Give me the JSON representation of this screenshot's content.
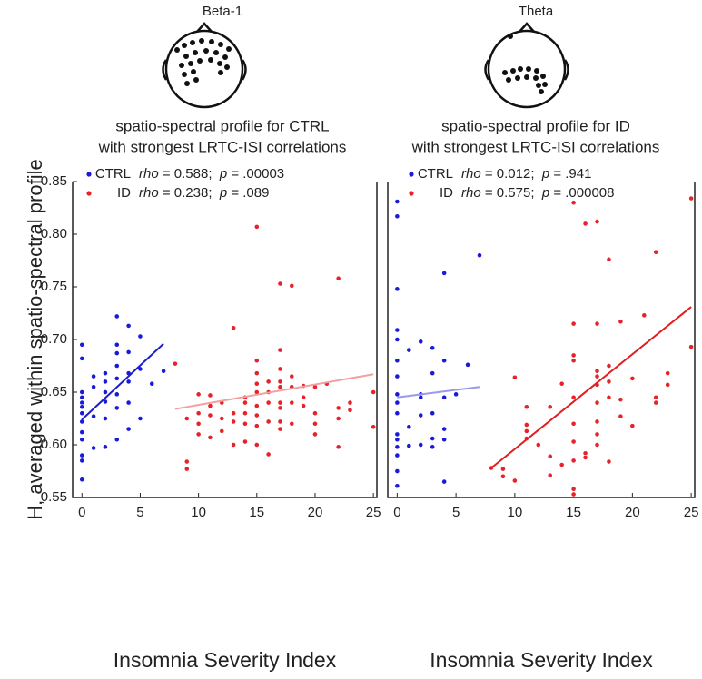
{
  "chart_data": [
    {
      "type": "scatter",
      "title": "Beta-1",
      "subtitle": [
        "spatio-spectral profile for CTRL",
        "with strongest LRTC-ISI correlations"
      ],
      "xlabel": "Insomnia Severity Index",
      "ylabel": "H, averaged within spatio-spectral profile",
      "xlim": [
        -0.8,
        25.3
      ],
      "ylim": [
        0.55,
        0.85
      ],
      "xticks": [
        0,
        5,
        10,
        15,
        20,
        25
      ],
      "yticks": [
        0.55,
        {
          "value": 0.6,
          "label": "0.60"
        },
        0.65,
        {
          "value": 0.7,
          "label": "0.70"
        },
        0.75,
        {
          "value": 0.8,
          "label": "0.80"
        },
        0.85
      ],
      "series": [
        {
          "name": "CTRL",
          "color": "#1a1adb",
          "legend_stats": [
            "rho",
            " = 0.588;  ",
            "p",
            " = .00003"
          ],
          "x": [
            0,
            0,
            0,
            0,
            0,
            0,
            0,
            0,
            0,
            0,
            0,
            0,
            0,
            1,
            1,
            1,
            1,
            2,
            2,
            2,
            2,
            2,
            2,
            3,
            3,
            3,
            3,
            3,
            3,
            3,
            3,
            4,
            4,
            4,
            4,
            4,
            4,
            5,
            5,
            5,
            6,
            7
          ],
          "values": [
            0.695,
            0.682,
            0.65,
            0.645,
            0.64,
            0.636,
            0.63,
            0.622,
            0.612,
            0.605,
            0.59,
            0.585,
            0.567,
            0.665,
            0.655,
            0.627,
            0.597,
            0.668,
            0.66,
            0.65,
            0.641,
            0.625,
            0.598,
            0.722,
            0.695,
            0.687,
            0.675,
            0.663,
            0.648,
            0.635,
            0.605,
            0.713,
            0.688,
            0.668,
            0.66,
            0.64,
            0.615,
            0.703,
            0.672,
            0.625,
            0.658,
            0.67
          ],
          "fit": {
            "color": "#1c1ccc",
            "x": [
              0,
              7
            ],
            "values": [
              0.624,
              0.696
            ]
          }
        },
        {
          "name": "ID",
          "color": "#e8222a",
          "legend_stats": [
            "rho",
            " = 0.238;  ",
            "p",
            " = .089"
          ],
          "x": [
            8,
            9,
            9,
            9,
            10,
            10,
            10,
            10,
            11,
            11,
            11,
            11,
            12,
            12,
            12,
            13,
            13,
            13,
            13,
            14,
            14,
            14,
            14,
            14,
            15,
            15,
            15,
            15,
            15,
            15,
            15,
            15,
            15,
            16,
            16,
            16,
            16,
            16,
            17,
            17,
            17,
            17,
            17,
            17,
            17,
            17,
            17,
            18,
            18,
            18,
            18,
            18,
            19,
            19,
            19,
            20,
            20,
            20,
            20,
            21,
            22,
            22,
            22,
            22,
            23,
            23,
            25,
            25
          ],
          "values": [
            0.677,
            0.625,
            0.584,
            0.577,
            0.648,
            0.63,
            0.62,
            0.61,
            0.647,
            0.628,
            0.607,
            0.637,
            0.64,
            0.625,
            0.613,
            0.711,
            0.63,
            0.622,
            0.6,
            0.645,
            0.64,
            0.63,
            0.62,
            0.603,
            0.807,
            0.68,
            0.668,
            0.658,
            0.65,
            0.637,
            0.628,
            0.618,
            0.6,
            0.66,
            0.65,
            0.64,
            0.622,
            0.591,
            0.753,
            0.69,
            0.672,
            0.66,
            0.655,
            0.64,
            0.635,
            0.622,
            0.615,
            0.751,
            0.665,
            0.655,
            0.64,
            0.62,
            0.656,
            0.645,
            0.637,
            0.655,
            0.63,
            0.62,
            0.61,
            0.658,
            0.758,
            0.635,
            0.625,
            0.598,
            0.64,
            0.633,
            0.65,
            0.617
          ],
          "fit": {
            "color": "#f4a0a0",
            "x": [
              8,
              25
            ],
            "values": [
              0.634,
              0.667
            ]
          }
        }
      ]
    },
    {
      "type": "scatter",
      "title": "Theta",
      "subtitle": [
        "spatio-spectral profile for ID",
        "with strongest LRTC-ISI correlations"
      ],
      "xlabel": "Insomnia Severity Index",
      "xlim": [
        -0.8,
        25.3
      ],
      "ylim": [
        0.55,
        0.85
      ],
      "xticks": [
        0,
        5,
        10,
        15,
        20,
        25
      ],
      "series": [
        {
          "name": "CTRL",
          "color": "#1a1adb",
          "legend_stats": [
            "rho",
            " = 0.012;  ",
            "p",
            " = .941"
          ],
          "x": [
            0,
            0,
            0,
            0,
            0,
            0,
            0,
            0,
            0,
            0,
            0,
            0,
            0,
            0,
            0,
            0,
            1,
            1,
            1,
            2,
            2,
            2,
            2,
            2,
            3,
            3,
            3,
            3,
            3,
            4,
            4,
            4,
            4,
            4,
            4,
            5,
            6,
            7
          ],
          "values": [
            0.831,
            0.817,
            0.748,
            0.709,
            0.7,
            0.68,
            0.665,
            0.648,
            0.64,
            0.63,
            0.61,
            0.605,
            0.598,
            0.59,
            0.575,
            0.561,
            0.69,
            0.617,
            0.599,
            0.698,
            0.648,
            0.645,
            0.628,
            0.6,
            0.692,
            0.668,
            0.63,
            0.606,
            0.598,
            0.763,
            0.68,
            0.645,
            0.615,
            0.605,
            0.565,
            0.648,
            0.676,
            0.78
          ],
          "fit": {
            "color": "#9999ee",
            "x": [
              0,
              7
            ],
            "values": [
              0.645,
              0.655
            ]
          }
        },
        {
          "name": "ID",
          "color": "#e8222a",
          "legend_stats": [
            "rho",
            " = 0.575;  ",
            "p",
            " = .000008"
          ],
          "x": [
            8,
            9,
            9,
            10,
            10,
            11,
            11,
            11,
            11,
            12,
            13,
            13,
            13,
            14,
            14,
            15,
            15,
            15,
            15,
            15,
            15,
            15,
            15,
            15,
            15,
            16,
            16,
            16,
            17,
            17,
            17,
            17,
            17,
            17,
            17,
            17,
            17,
            18,
            18,
            18,
            18,
            18,
            19,
            19,
            19,
            20,
            20,
            21,
            22,
            22,
            22,
            23,
            23,
            25,
            25
          ],
          "values": [
            0.578,
            0.577,
            0.57,
            0.664,
            0.566,
            0.636,
            0.619,
            0.613,
            0.606,
            0.6,
            0.589,
            0.571,
            0.636,
            0.658,
            0.581,
            0.83,
            0.715,
            0.685,
            0.68,
            0.645,
            0.62,
            0.603,
            0.585,
            0.558,
            0.553,
            0.81,
            0.592,
            0.588,
            0.812,
            0.715,
            0.67,
            0.665,
            0.657,
            0.64,
            0.622,
            0.61,
            0.6,
            0.776,
            0.675,
            0.66,
            0.645,
            0.584,
            0.717,
            0.643,
            0.627,
            0.663,
            0.618,
            0.723,
            0.783,
            0.645,
            0.64,
            0.668,
            0.657,
            0.834,
            0.693
          ],
          "fit": {
            "color": "#e02020",
            "x": [
              8,
              25
            ],
            "values": [
              0.578,
              0.731
            ]
          }
        }
      ]
    }
  ]
}
